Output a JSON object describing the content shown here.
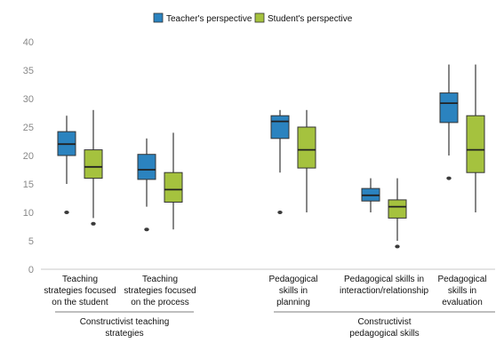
{
  "chart_data": {
    "type": "box",
    "legend": {
      "placement": "top-center"
    },
    "ylim": [
      0,
      40
    ],
    "yticks": [
      0,
      5,
      10,
      15,
      20,
      25,
      30,
      35,
      40
    ],
    "grid": false,
    "categories": [
      {
        "label": [
          "Teaching",
          "strategies focused",
          "on the student"
        ]
      },
      {
        "label": [
          "Teaching",
          "strategies focused",
          "on the process"
        ]
      },
      {
        "label": [
          "Pedagogical",
          "skills in",
          "planning"
        ]
      },
      {
        "label": [
          "Pedagogical skills in",
          "interaction/relationship"
        ]
      },
      {
        "label": [
          "Pedagogical",
          "skills in",
          "evaluation"
        ]
      }
    ],
    "groups": [
      {
        "label": [
          "Constructivist teaching",
          "strategies"
        ],
        "categories": [
          0,
          1
        ]
      },
      {
        "label": [
          "Constructivist",
          "pedagogical skills"
        ],
        "categories": [
          2,
          3,
          4
        ]
      }
    ],
    "series": [
      {
        "name": "Teacher's perspective",
        "color": "#2b83bf",
        "boxes": [
          {
            "min": 15,
            "q1": 20,
            "median": 22,
            "q3": 24.2,
            "max": 27,
            "outliers": [
              10
            ]
          },
          {
            "min": 11,
            "q1": 15.8,
            "median": 17.5,
            "q3": 20.2,
            "max": 23,
            "outliers": [
              7
            ]
          },
          {
            "min": 17,
            "q1": 23,
            "median": 26,
            "q3": 27,
            "max": 28,
            "outliers": [
              10
            ]
          },
          {
            "min": 10,
            "q1": 12,
            "median": 13,
            "q3": 14.2,
            "max": 16,
            "outliers": []
          },
          {
            "min": 20,
            "q1": 25.8,
            "median": 29.2,
            "q3": 31,
            "max": 36,
            "outliers": [
              16
            ]
          }
        ]
      },
      {
        "name": "Student's perspective",
        "color": "#a5c23e",
        "boxes": [
          {
            "min": 9,
            "q1": 16,
            "median": 18,
            "q3": 21,
            "max": 28,
            "outliers": [
              8
            ]
          },
          {
            "min": 7,
            "q1": 11.8,
            "median": 14,
            "q3": 17,
            "max": 24,
            "outliers": []
          },
          {
            "min": 10,
            "q1": 17.8,
            "median": 21,
            "q3": 25,
            "max": 28,
            "outliers": []
          },
          {
            "min": 5,
            "q1": 9,
            "median": 11,
            "q3": 12.2,
            "max": 16,
            "outliers": [
              4
            ]
          },
          {
            "min": 10,
            "q1": 17,
            "median": 21,
            "q3": 27,
            "max": 36,
            "outliers": []
          }
        ]
      }
    ]
  }
}
